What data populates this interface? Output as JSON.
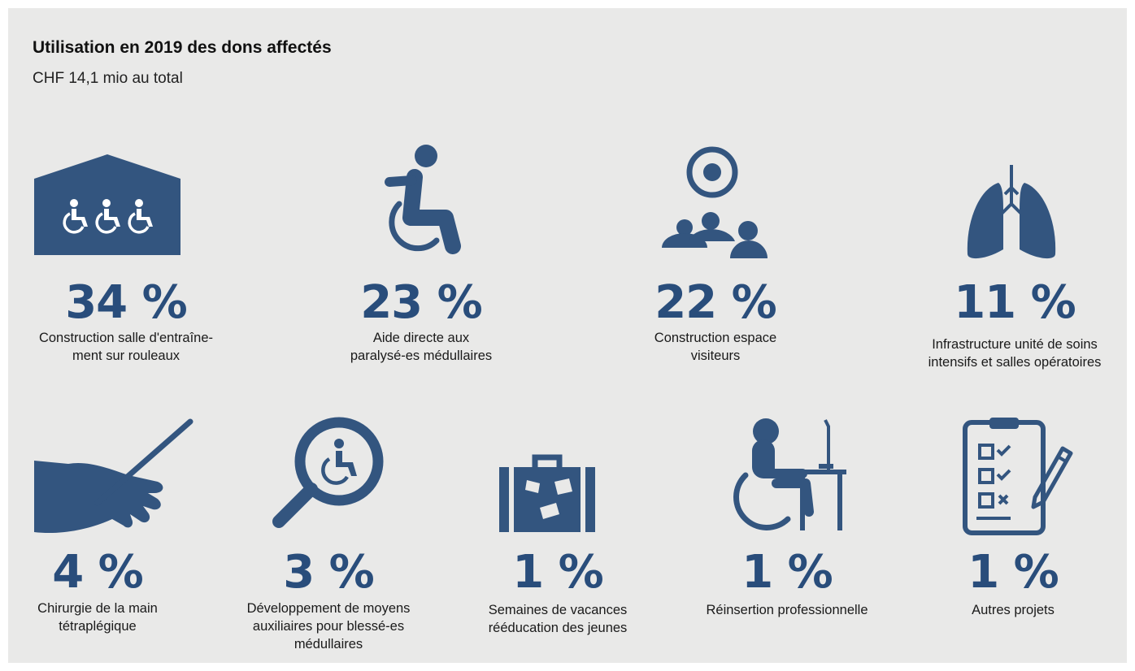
{
  "title": "Utilisation en 2019 des dons affectés",
  "subtitle": "CHF 14,1 mio au total",
  "colors": {
    "accent": "#294d7b",
    "background": "#e9e9e8",
    "icon": "#33557f"
  },
  "chart_data": {
    "type": "table",
    "title": "Utilisation en 2019 des dons affectés",
    "subtitle": "CHF 14,1 mio au total",
    "categories": [
      "Construction salle d'entraîne- ment sur rouleaux",
      "Aide directe aux paralysé-es médullaires",
      "Construction espace visiteurs",
      "Infrastructure unité de soins intensifs et salles opératoires",
      "Chirurgie de la main tétraplégique",
      "Développement de moyens auxiliaires pour blessé-es médullaires",
      "Semaines de vacances rééducation des jeunes",
      "Réinsertion professionnelle",
      "Autres projets"
    ],
    "values": [
      34,
      23,
      22,
      11,
      4,
      3,
      1,
      1,
      1
    ],
    "unit": "%",
    "items": [
      {
        "icon": "training-hall-icon",
        "percent": "34 %",
        "label_lines": [
          "Construction salle d'entraîne-",
          "ment sur rouleaux"
        ]
      },
      {
        "icon": "wheelchair-user-icon",
        "percent": "23 %",
        "label_lines": [
          "Aide directe aux",
          "paralysé-es médullaires"
        ]
      },
      {
        "icon": "visitors-space-icon",
        "percent": "22 %",
        "label_lines": [
          "Construction espace",
          "visiteurs"
        ]
      },
      {
        "icon": "lungs-icon",
        "percent": "11 %",
        "label_lines": [
          "Infrastructure unité de soins",
          "intensifs et salles opératoires"
        ]
      },
      {
        "icon": "hand-scalpel-icon",
        "percent": "4 %",
        "label_lines": [
          "Chirurgie de la main",
          "tétraplégique"
        ]
      },
      {
        "icon": "magnifier-wheelchair-icon",
        "percent": "3 %",
        "label_lines": [
          "Développement de moyens",
          "auxiliaires pour blessé-es",
          "médullaires"
        ]
      },
      {
        "icon": "suitcase-icon",
        "percent": "1 %",
        "label_lines": [
          "Semaines de vacances",
          "rééducation des jeunes"
        ]
      },
      {
        "icon": "wheelchair-desk-icon",
        "percent": "1 %",
        "label_lines": [
          "Réinsertion professionnelle"
        ]
      },
      {
        "icon": "clipboard-checklist-icon",
        "percent": "1 %",
        "label_lines": [
          "Autres projets"
        ]
      }
    ]
  }
}
